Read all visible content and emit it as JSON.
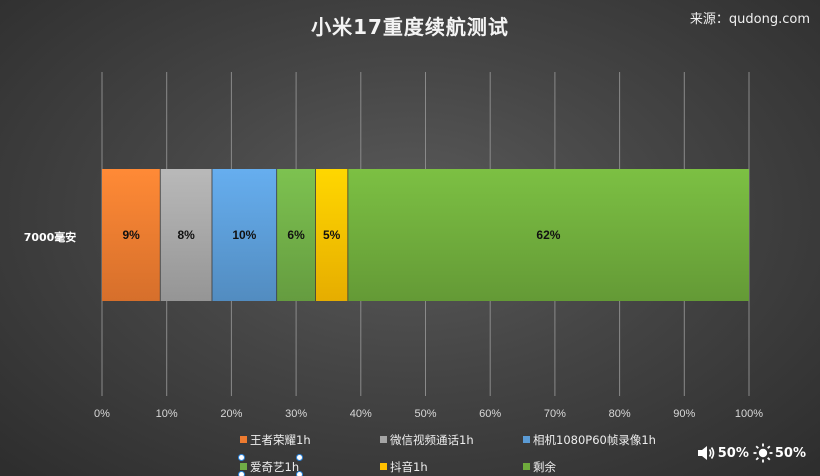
{
  "title": "小米17重度续航测试",
  "source": "来源：qudong.com",
  "status": {
    "volume_value": "50%",
    "brightness_value": "50%",
    "volume_icon": "speaker-icon",
    "brightness_icon": "sun-icon"
  },
  "chart_data": {
    "type": "bar",
    "orientation": "horizontal",
    "stacked": "percent",
    "title": "小米17重度续航测试",
    "categories": [
      "7000毫安"
    ],
    "series": [
      {
        "name": "王者荣耀1h",
        "values": [
          9
        ],
        "label": "9%",
        "color": "#ee7b30"
      },
      {
        "name": "微信视频通话1h",
        "values": [
          8
        ],
        "label": "8%",
        "color": "#a5a5a5"
      },
      {
        "name": "相机1080P60帧录像1h",
        "values": [
          10
        ],
        "label": "10%",
        "color": "#5b9bd5"
      },
      {
        "name": "爱奇艺1h",
        "values": [
          6
        ],
        "label": "6%",
        "color": "#70ad47"
      },
      {
        "name": "抖音1h",
        "values": [
          5
        ],
        "label": "5%",
        "color": "#ffc000"
      },
      {
        "name": "剩余",
        "values": [
          62
        ],
        "label": "62%",
        "color": "#6fab3c"
      }
    ],
    "xlim": [
      0,
      100
    ],
    "xticks": [
      "0%",
      "10%",
      "20%",
      "30%",
      "40%",
      "50%",
      "60%",
      "70%",
      "80%",
      "90%",
      "100%"
    ],
    "grid": true,
    "legend": "bottom"
  }
}
